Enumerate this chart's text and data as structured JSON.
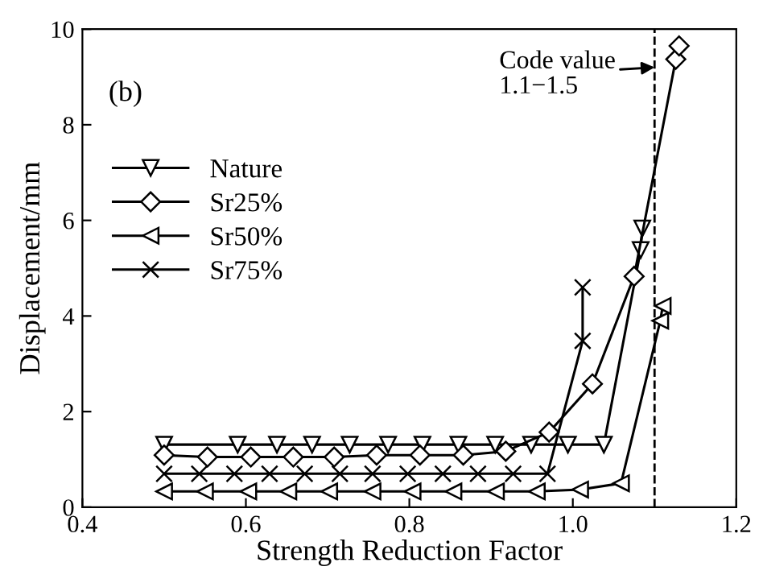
{
  "chart_data": {
    "type": "line",
    "xlabel": "Strength Reduction Factor",
    "ylabel": "Displacement/mm",
    "xlim": [
      0.4,
      1.2
    ],
    "ylim": [
      0,
      10
    ],
    "xticks": [
      0.4,
      0.6,
      0.8,
      {
        "value": 1.0,
        "label": "1.0"
      },
      1.2
    ],
    "yticks": [
      0,
      2,
      4,
      6,
      8,
      10
    ],
    "grid": false,
    "legend": "top left",
    "line_style": "solid",
    "annotations": [
      "(b)",
      {
        "text": "Code value\n1.1−1.5",
        "x": 1.1,
        "y": 9.2
      }
    ],
    "ref_lines": [
      {
        "axis": "x",
        "value": 1.1,
        "line_style": "dashed",
        "color": "#000000"
      }
    ],
    "series": [
      {
        "name": "Nature",
        "color": "#000000",
        "marker": "triangle_down",
        "x": [
          0.5,
          0.59,
          0.638,
          0.681,
          0.727,
          0.774,
          0.816,
          0.86,
          0.905,
          0.949,
          0.994,
          1.038,
          1.083,
          1.085
        ],
        "values": [
          1.31,
          1.31,
          1.31,
          1.31,
          1.31,
          1.31,
          1.31,
          1.31,
          1.31,
          1.31,
          1.31,
          1.31,
          5.38,
          5.83
        ]
      },
      {
        "name": "Sr25%",
        "color": "#000000",
        "marker": "diamond",
        "x": [
          0.5,
          0.553,
          0.606,
          0.658,
          0.708,
          0.76,
          0.813,
          0.866,
          0.918,
          0.971,
          1.024,
          1.075,
          1.126,
          1.13
        ],
        "values": [
          1.09,
          1.05,
          1.05,
          1.05,
          1.05,
          1.09,
          1.09,
          1.09,
          1.17,
          1.57,
          2.58,
          4.83,
          9.37,
          9.65
        ]
      },
      {
        "name": "Sr50%",
        "color": "#000000",
        "marker": "triangle_left",
        "x": [
          0.5,
          0.55,
          0.603,
          0.652,
          0.702,
          0.755,
          0.804,
          0.854,
          0.906,
          0.956,
          1.009,
          1.059,
          1.107,
          1.11
        ],
        "values": [
          0.33,
          0.33,
          0.33,
          0.33,
          0.33,
          0.33,
          0.33,
          0.33,
          0.33,
          0.33,
          0.37,
          0.5,
          3.9,
          4.21
        ]
      },
      {
        "name": "Sr75%",
        "color": "#000000",
        "marker": "cross",
        "x": [
          0.5,
          0.543,
          0.586,
          0.629,
          0.672,
          0.715,
          0.755,
          0.798,
          0.841,
          0.884,
          0.927,
          0.969,
          1.012,
          1.012
        ],
        "values": [
          0.7,
          0.7,
          0.7,
          0.7,
          0.7,
          0.7,
          0.7,
          0.7,
          0.7,
          0.7,
          0.7,
          0.7,
          3.48,
          4.6
        ]
      }
    ]
  }
}
